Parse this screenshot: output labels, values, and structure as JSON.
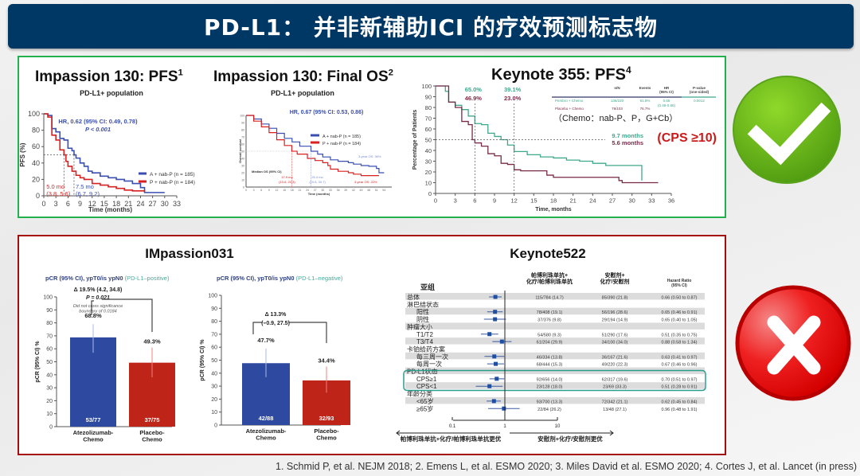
{
  "slide": {
    "title": "PD-L1： 并非新辅助ICI 的疗效预测标志物",
    "footnote": "1. Schmid P, et al. NEJM 2018; 2. Emens L, et al. ESMO 2020; 3. Miles David et al. ESMO 2020; 4. Cortes J, et al. Lancet (in press)",
    "colors": {
      "title_bg": "#003865",
      "positive_box": "#22b14c",
      "negative_box": "#a30d0d",
      "check": "#6cbf1a",
      "cross": "#e41b1b"
    },
    "icons": {
      "positive": "check-icon",
      "negative": "cross-icon"
    }
  },
  "chart_data": [
    {
      "id": "pfs130",
      "type": "line",
      "title": "Impassion 130: PFS",
      "title_sup": "1",
      "subtitle": "PD-L1+ population",
      "ylabel": "PFS (%)",
      "xlabel": "Time (months)",
      "xlim": [
        0,
        33
      ],
      "ylim": [
        0,
        100
      ],
      "xticks": [
        "0",
        "3",
        "6",
        "9",
        "12",
        "15",
        "18",
        "21",
        "24",
        "27",
        "30",
        "33"
      ],
      "yticks": [
        "0",
        "20",
        "40",
        "60",
        "80",
        "100"
      ],
      "annotation_hr": "HR, 0.62 (95%  CI: 0.49, 0.78)",
      "annotation_p": "P < 0.001",
      "medians": [
        {
          "label": "5.0 mo",
          "ci": "(3.8, 5.6)",
          "x": 5.0,
          "color": "#d92020"
        },
        {
          "label": "7.5 mo",
          "ci": "(6.7, 9.2)",
          "x": 7.5,
          "color": "#3a4fb0"
        }
      ],
      "series": [
        {
          "name": "A + nab-P (n = 185)",
          "color": "#3a4fb0",
          "points": [
            [
              0,
              100
            ],
            [
              1,
              98
            ],
            [
              2,
              82
            ],
            [
              3,
              78
            ],
            [
              4,
              70
            ],
            [
              5,
              68
            ],
            [
              6,
              58
            ],
            [
              7,
              55
            ],
            [
              7.5,
              50
            ],
            [
              8,
              46
            ],
            [
              9,
              40
            ],
            [
              10,
              36
            ],
            [
              11,
              30
            ],
            [
              12,
              28
            ],
            [
              14,
              24
            ],
            [
              16,
              22
            ],
            [
              18,
              20
            ],
            [
              20,
              18
            ],
            [
              22,
              15
            ],
            [
              24,
              10
            ],
            [
              25,
              4
            ],
            [
              30,
              4
            ]
          ]
        },
        {
          "name": "P + nab-P (n = 184)",
          "color": "#d92020",
          "points": [
            [
              0,
              100
            ],
            [
              1,
              96
            ],
            [
              2,
              74
            ],
            [
              3,
              68
            ],
            [
              4,
              56
            ],
            [
              5,
              50
            ],
            [
              5.5,
              42
            ],
            [
              6,
              36
            ],
            [
              7,
              30
            ],
            [
              8,
              25
            ],
            [
              9,
              22
            ],
            [
              10,
              20
            ],
            [
              12,
              15
            ],
            [
              14,
              13
            ],
            [
              16,
              11
            ],
            [
              18,
              9
            ],
            [
              20,
              7
            ],
            [
              22,
              6
            ],
            [
              25,
              5
            ]
          ]
        }
      ]
    },
    {
      "id": "os130",
      "type": "line",
      "title": "Impassion 130: Final OS",
      "title_sup": "2",
      "subtitle": "PD-L1+ population",
      "ylabel": "Overall survival",
      "xlabel": "Time (months)",
      "xlim": [
        0,
        57
      ],
      "ylim": [
        0,
        100
      ],
      "annotation_hr": "HR, 0.67 (95%  CI: 0.53, 0.86)",
      "median_label": "Median OS (95% CI)",
      "medians": [
        {
          "label": "17.9 mo",
          "ci": "(13.6, 20.3)",
          "x": 17.9,
          "color": "#d92020"
        },
        {
          "label": "25.4 mo",
          "ci": "(19.6, 30.7)",
          "x": 25.4,
          "color": "#7a8ad0"
        }
      ],
      "landmarks": [
        {
          "label": "3-year OS: 36%",
          "color": "#7a8ad0"
        },
        {
          "label": "3-year OS: 22%",
          "color": "#d92020"
        }
      ],
      "series": [
        {
          "name": "A + nab-P (n = 185)",
          "color": "#3a4fb0",
          "points": [
            [
              0,
              100
            ],
            [
              3,
              95
            ],
            [
              6,
              88
            ],
            [
              9,
              82
            ],
            [
              12,
              75
            ],
            [
              15,
              68
            ],
            [
              18,
              63
            ],
            [
              21,
              57
            ],
            [
              25.4,
              50
            ],
            [
              28,
              46
            ],
            [
              30,
              42
            ],
            [
              33,
              38
            ],
            [
              36,
              36
            ],
            [
              40,
              34
            ],
            [
              42,
              32
            ],
            [
              45,
              30
            ],
            [
              48,
              29
            ],
            [
              51,
              26
            ],
            [
              52,
              20
            ],
            [
              54,
              20
            ]
          ]
        },
        {
          "name": "P + nab-P (n = 184)",
          "color": "#d92020",
          "points": [
            [
              0,
              100
            ],
            [
              3,
              92
            ],
            [
              6,
              84
            ],
            [
              9,
              76
            ],
            [
              12,
              66
            ],
            [
              15,
              58
            ],
            [
              17.9,
              50
            ],
            [
              20,
              46
            ],
            [
              24,
              40
            ],
            [
              27,
              37
            ],
            [
              30,
              34
            ],
            [
              32,
              30
            ],
            [
              33,
              25
            ],
            [
              36,
              22
            ],
            [
              40,
              20
            ],
            [
              42,
              18
            ],
            [
              45,
              16
            ],
            [
              48,
              16
            ],
            [
              52,
              16
            ]
          ]
        }
      ]
    },
    {
      "id": "kn355",
      "type": "line",
      "title": "Keynote 355: PFS",
      "title_sup": "4",
      "ylabel": "Percentage of Patients",
      "xlabel": "Time, months",
      "xlim": [
        0,
        36
      ],
      "ylim": [
        0,
        100
      ],
      "xticks": [
        "0",
        "3",
        "6",
        "9",
        "12",
        "15",
        "18",
        "21",
        "24",
        "27",
        "30",
        "33",
        "36"
      ],
      "yticks": [
        "0",
        "10",
        "20",
        "30",
        "40",
        "50",
        "60",
        "70",
        "80",
        "90",
        "100"
      ],
      "landmarks": [
        {
          "x": 6,
          "pembro": "65.0%",
          "placebo": "46.9%"
        },
        {
          "x": 12,
          "pembro": "39.1%",
          "placebo": "23.0%"
        }
      ],
      "medians": {
        "pembro": "9.7 months",
        "placebo": "5.6 months"
      },
      "chemo_note": "（Chemo：nab-P、P，G+Cb）",
      "cps_note": "(CPS ≥10)",
      "table": {
        "headers": [
          "n/N",
          "Events",
          "HR\n(95% CI)",
          "P-value\n(one-sided)"
        ],
        "rows": [
          {
            "arm": "Pembro + Chemo",
            "n": "136/220",
            "events": "61.8%",
            "hr": "0.65",
            "hr_ci": "(0.49-0.86)",
            "p": "0.0012"
          },
          {
            "arm": "Placebo + Chemo",
            "n": "79/103",
            "events": "76.7%"
          }
        ]
      },
      "series": [
        {
          "name": "Pembro + Chemo",
          "color": "#3fa88c",
          "points": [
            [
              0,
              100
            ],
            [
              1.5,
              95
            ],
            [
              2,
              85
            ],
            [
              3,
              82
            ],
            [
              4,
              78
            ],
            [
              5,
              72
            ],
            [
              6,
              65
            ],
            [
              7,
              64
            ],
            [
              8,
              56
            ],
            [
              9,
              53
            ],
            [
              10,
              50
            ],
            [
              11,
              45
            ],
            [
              12,
              39
            ],
            [
              14,
              36
            ],
            [
              16,
              34
            ],
            [
              18,
              33
            ],
            [
              20,
              31
            ],
            [
              22,
              30
            ],
            [
              24,
              28
            ],
            [
              26,
              26
            ],
            [
              31.5,
              26
            ],
            [
              31.5,
              12
            ]
          ]
        },
        {
          "name": "Placebo + Chemo",
          "color": "#7a2a48",
          "points": [
            [
              0,
              100
            ],
            [
              2,
              85
            ],
            [
              3,
              80
            ],
            [
              4,
              67
            ],
            [
              5,
              64
            ],
            [
              5.6,
              50
            ],
            [
              6,
              47
            ],
            [
              7,
              44
            ],
            [
              8,
              37
            ],
            [
              9,
              35
            ],
            [
              10,
              28
            ],
            [
              11,
              27
            ],
            [
              12,
              22
            ],
            [
              13,
              21
            ],
            [
              17,
              17
            ],
            [
              18,
              15
            ],
            [
              28,
              12
            ],
            [
              28.5,
              10
            ],
            [
              34,
              10
            ]
          ]
        }
      ]
    },
    {
      "id": "imp031_pos",
      "type": "bar",
      "section_title": "IMpassion031",
      "title": "pCR (95% CI), ypT0/is ypN0",
      "title_suffix": "(PD-L1–positive)",
      "ylabel": "pCR (95% CI) %",
      "ylim": [
        0,
        100
      ],
      "yticks": [
        "0",
        "10",
        "20",
        "30",
        "40",
        "50",
        "60",
        "70",
        "80",
        "90",
        "100"
      ],
      "categories": [
        "Atezolizumab-\nChemo",
        "Placebo-\nChemo"
      ],
      "values": [
        68.8,
        49.3
      ],
      "ci": [
        [
          57,
          79
        ],
        [
          38,
          61
        ]
      ],
      "value_labels": [
        "68.8%",
        "49.3%"
      ],
      "counts": [
        "53/77",
        "37/75"
      ],
      "colors": [
        "#2e4aa0",
        "#bf2418"
      ],
      "delta": "Δ 19.5% (4.2, 34.8)",
      "p": "P = 0.021",
      "note": "Did not cross significance\nboundary of 0.0184"
    },
    {
      "id": "imp031_neg",
      "type": "bar",
      "title": "pCR (95% CI), ypT0/is ypN0",
      "title_suffix": "(PD-L1–negative)",
      "ylabel": "pCR (95% CI) %",
      "ylim": [
        0,
        100
      ],
      "yticks": [
        "0",
        "10",
        "20",
        "30",
        "40",
        "50",
        "60",
        "70",
        "80",
        "90",
        "100"
      ],
      "categories": [
        "Atezolizumab-\nChemo",
        "Placebo-\nChemo"
      ],
      "values": [
        47.7,
        34.4
      ],
      "ci": [
        [
          37,
          59
        ],
        [
          25,
          45
        ]
      ],
      "value_labels": [
        "47.7%",
        "34.4%"
      ],
      "counts": [
        "42/88",
        "32/93"
      ],
      "colors": [
        "#2e4aa0",
        "#bf2418"
      ],
      "delta": "Δ 13.3%",
      "delta_ci": "(–0.9, 27.5)"
    },
    {
      "id": "kn522",
      "type": "forest",
      "title": "Keynote522",
      "headers": {
        "subgroup": "亚组",
        "col1": "帕博利珠单抗+\n化疗/帕博利珠单抗",
        "col2": "安慰剂+\n化疗/安慰剂",
        "col3": "Hazard Ratio\n(95% CI)"
      },
      "xticks": [
        "0.1",
        "1",
        "10"
      ],
      "xlim": [
        0.1,
        10
      ],
      "favors_left": "帕博利珠单抗+化疗/帕博利珠单抗更优",
      "favors_right": "安慰剂+化疗/安慰剂更优",
      "rows": [
        {
          "label": "总体",
          "indent": 0,
          "c1": "115/784 (14.7)",
          "c2": "85/390 (21.8)",
          "c3": "0.66 (0.50 to 0.87)",
          "hr": 0.66,
          "lo": 0.5,
          "hi": 0.87
        },
        {
          "label": "淋巴结状态",
          "indent": 0
        },
        {
          "label": "阳性",
          "indent": 1,
          "c1": "78/408 (19.1)",
          "c2": "56/196 (28.6)",
          "c3": "0.65 (0.46 to 0.91)",
          "hr": 0.65,
          "lo": 0.46,
          "hi": 0.91
        },
        {
          "label": "阴性",
          "indent": 1,
          "c1": "37/376 (9.8)",
          "c2": "29/194 (14.9)",
          "c3": "0.65 (0.40 to 1.05)",
          "hr": 0.65,
          "lo": 0.4,
          "hi": 1.05
        },
        {
          "label": "肿瘤大小",
          "indent": 0
        },
        {
          "label": "T1/T2",
          "indent": 1,
          "c1": "54/580 (9.3)",
          "c2": "51/290 (17.6)",
          "c3": "0.51 (0.35 to 0.75)",
          "hr": 0.51,
          "lo": 0.35,
          "hi": 0.75
        },
        {
          "label": "T3/T4",
          "indent": 1,
          "c1": "61/204 (29.9)",
          "c2": "34/100 (34.0)",
          "c3": "0.88 (0.58 to 1.34)",
          "hr": 0.88,
          "lo": 0.58,
          "hi": 1.34
        },
        {
          "label": "卡铂给药方案",
          "indent": 0
        },
        {
          "label": "每三周一次",
          "indent": 1,
          "c1": "46/334 (13.8)",
          "c2": "36/167 (21.6)",
          "c3": "0.63 (0.41 to 0.97)",
          "hr": 0.63,
          "lo": 0.41,
          "hi": 0.97
        },
        {
          "label": "每周一次",
          "indent": 1,
          "c1": "68/444 (15.3)",
          "c2": "49/220 (22.3)",
          "c3": "0.67 (0.46 to 0.96)",
          "hr": 0.67,
          "lo": 0.46,
          "hi": 0.96
        },
        {
          "label": "PD-L1状态",
          "indent": 0,
          "highlight": true
        },
        {
          "label": "CPS≥1",
          "indent": 1,
          "highlight": true,
          "c1": "92/656 (14.0)",
          "c2": "62/317 (19.6)",
          "c3": "0.70 (0.51 to 0.97)",
          "hr": 0.7,
          "lo": 0.51,
          "hi": 0.97
        },
        {
          "label": "CPS<1",
          "indent": 1,
          "highlight": true,
          "c1": "23/128 (18.0)",
          "c2": "23/69 (33.3)",
          "c3": "0.51 (0.28 to 0.91)",
          "hr": 0.51,
          "lo": 0.28,
          "hi": 0.91
        },
        {
          "label": "年龄分类",
          "indent": 0
        },
        {
          "label": "<65岁",
          "indent": 1,
          "c1": "93/700 (13.3)",
          "c2": "72/342 (21.1)",
          "c3": "0.62 (0.45 to 0.84)",
          "hr": 0.62,
          "lo": 0.45,
          "hi": 0.84
        },
        {
          "label": "≥65岁",
          "indent": 1,
          "c1": "22/84 (26.2)",
          "c2": "13/48 (27.1)",
          "c3": "0.96 (0.48 to 1.91)",
          "hr": 0.96,
          "lo": 0.48,
          "hi": 1.91
        }
      ],
      "highlight_color": "#2a9d8f"
    }
  ]
}
